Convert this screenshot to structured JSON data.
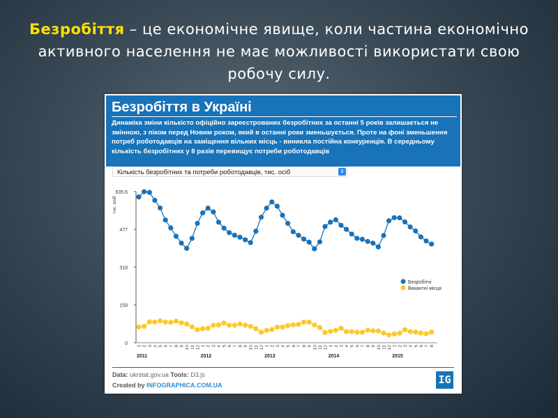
{
  "slide": {
    "heading_highlight": "Безробіття",
    "heading_rest": " – це економічне явище, коли частина економічно активного населення не має можливості використати свою робочу силу."
  },
  "card": {
    "title": "Безробіття в Україні",
    "description": "Динаміка зміни кількісто офіційно зареєстрованих безробітних за останні 5 років залишається не змінною, з піком перед Новим роком, який в останні роки зменьшується. Проте на фоні зменьшення потреб роботодавців на заміщення вільних місць - виникла постійна конкуренція. В середньому кількість безробітних у 8 разів перевищує потреби роботодавців",
    "select_value": "Кількість безробітних та потреби роботодавців, тис. осіб",
    "footer": {
      "data_label": "Data:",
      "data_value": "ukrstat.gov.ua",
      "tools_label": "Tools:",
      "tools_value": "D3.js",
      "created_label": "Created by",
      "created_link": "INFOGRAPHICA.COM.UA",
      "logo_text": "IG"
    }
  },
  "chart_data": {
    "type": "line",
    "title": "Безробіття в Україні",
    "ylabel": "тис. осіб",
    "xlabel": "",
    "ylim": [
      0,
      635.6
    ],
    "yticks": [
      "0",
      "159",
      "318",
      "477",
      "635.6"
    ],
    "ytick_values": [
      0,
      159,
      318,
      477,
      635.6
    ],
    "years": [
      "2011",
      "2012",
      "2013",
      "2014",
      "2015"
    ],
    "month_labels": [
      "1",
      "2",
      "3",
      "4",
      "5",
      "6",
      "7",
      "8",
      "9",
      "10",
      "11",
      "12",
      "1",
      "2",
      "3",
      "4",
      "5",
      "6",
      "7",
      "8",
      "9",
      "10",
      "11",
      "12",
      "1",
      "2",
      "3",
      "4",
      "5",
      "6",
      "7",
      "8",
      "9",
      "10",
      "11",
      "12",
      "1",
      "2",
      "3",
      "4",
      "5",
      "6",
      "7",
      "8",
      "9",
      "10",
      "11",
      "12",
      "1",
      "2",
      "3",
      "4",
      "5",
      "6",
      "7",
      "8"
    ],
    "legend_position": "right",
    "series": [
      {
        "name": "Безробітні",
        "color": "#1a72b8",
        "values": [
          613,
          635,
          632,
          599,
          567,
          516,
          483,
          448,
          419,
          397,
          439,
          502,
          546,
          566,
          550,
          507,
          482,
          463,
          452,
          444,
          433,
          421,
          469,
          528,
          566,
          592,
          574,
          536,
          502,
          467,
          452,
          436,
          423,
          395,
          424,
          489,
          507,
          517,
          494,
          477,
          457,
          439,
          435,
          426,
          419,
          403,
          451,
          513,
          526,
          525,
          508,
          487,
          470,
          445,
          428,
          415
        ]
      },
      {
        "name": "Вакантні місця",
        "color": "#fbc92a",
        "values": [
          66,
          69,
          88,
          87,
          92,
          87,
          86,
          91,
          84,
          79,
          67,
          55,
          59,
          61,
          74,
          75,
          83,
          74,
          74,
          79,
          74,
          69,
          59,
          44,
          52,
          56,
          66,
          66,
          72,
          76,
          77,
          87,
          87,
          75,
          64,
          43,
          48,
          52,
          61,
          47,
          47,
          44,
          44,
          53,
          50,
          50,
          41,
          33,
          37,
          40,
          55,
          47,
          45,
          41,
          38,
          45
        ]
      }
    ]
  }
}
